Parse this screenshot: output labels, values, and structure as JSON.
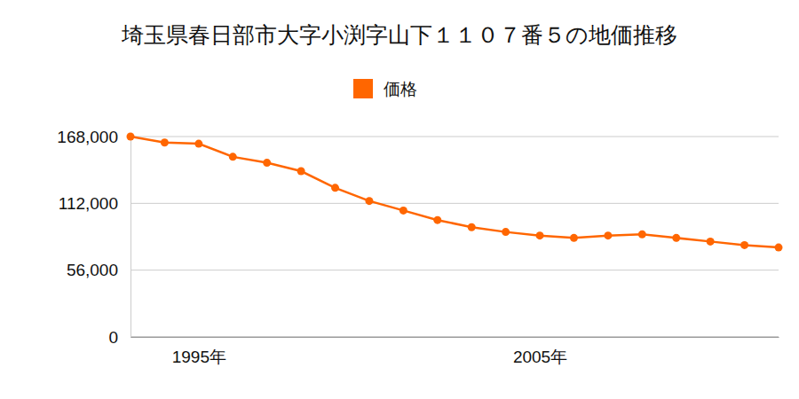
{
  "chart_data": {
    "type": "line",
    "title": "埼玉県春日部市大字小渕字山下１１０７番５の地価推移",
    "categories": [
      null,
      null,
      "1995年",
      null,
      null,
      null,
      null,
      null,
      null,
      null,
      null,
      null,
      "2005年",
      null,
      null,
      null,
      null,
      null,
      null,
      null
    ],
    "series": [
      {
        "name": "価格",
        "color": "#ff6600",
        "marker": "circle",
        "line_style": "solid",
        "values": [
          168000,
          163000,
          162000,
          151000,
          146000,
          139000,
          125000,
          114000,
          106000,
          98000,
          92000,
          88000,
          85000,
          83000,
          85000,
          86000,
          83000,
          80000,
          77000,
          75000
        ]
      }
    ],
    "ylim": [
      0,
      168000
    ],
    "yticks": [
      0,
      {
        "value": 56000,
        "label": "56,000"
      },
      {
        "value": 112000,
        "label": "112,000"
      },
      {
        "value": 168000,
        "label": "168,000"
      }
    ],
    "grid": true,
    "legend": "top"
  }
}
